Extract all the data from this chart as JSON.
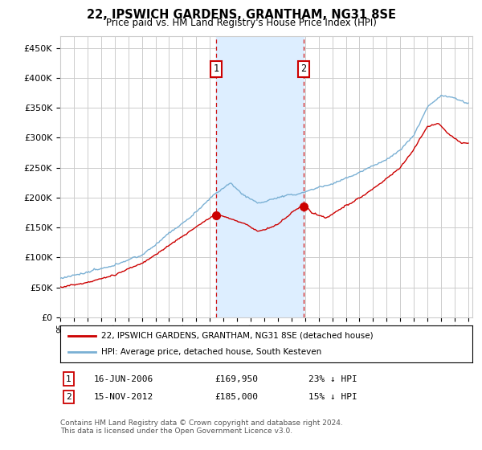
{
  "title": "22, IPSWICH GARDENS, GRANTHAM, NG31 8SE",
  "subtitle": "Price paid vs. HM Land Registry's House Price Index (HPI)",
  "ylim": [
    0,
    470000
  ],
  "yticks": [
    0,
    50000,
    100000,
    150000,
    200000,
    250000,
    300000,
    350000,
    400000,
    450000
  ],
  "sale1_year_float": 2006.458,
  "sale1_price": 169950,
  "sale2_year_float": 2012.875,
  "sale2_price": 185000,
  "legend_line1": "22, IPSWICH GARDENS, GRANTHAM, NG31 8SE (detached house)",
  "legend_line2": "HPI: Average price, detached house, South Kesteven",
  "footnote": "Contains HM Land Registry data © Crown copyright and database right 2024.\nThis data is licensed under the Open Government Licence v3.0.",
  "line_color_red": "#cc0000",
  "line_color_blue": "#7ab0d4",
  "shade_color": "#ddeeff",
  "grid_color": "#cccccc",
  "bg_color": "#ffffff"
}
